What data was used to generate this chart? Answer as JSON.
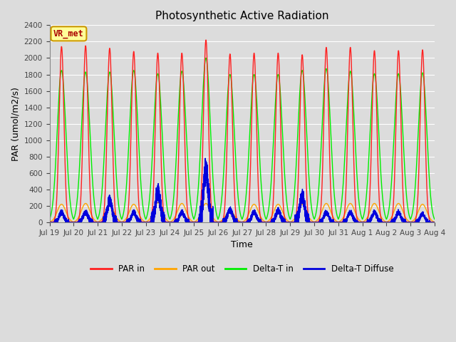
{
  "title": "Photosynthetic Active Radiation",
  "xlabel": "Time",
  "ylabel": "PAR (umol/m2/s)",
  "ylim": [
    0,
    2400
  ],
  "yticks": [
    0,
    200,
    400,
    600,
    800,
    1000,
    1200,
    1400,
    1600,
    1800,
    2000,
    2200,
    2400
  ],
  "background_color": "#dcdcdc",
  "plot_bg_color": "#dcdcdc",
  "grid_color": "#ffffff",
  "colors": {
    "PAR_in": "#ff2020",
    "PAR_out": "#ffa500",
    "Delta_T_in": "#00ee00",
    "Delta_T_Diffuse": "#0000dd"
  },
  "legend_labels": [
    "PAR in",
    "PAR out",
    "Delta-T in",
    "Delta-T Diffuse"
  ],
  "annotation_text": "VR_met",
  "num_days": 16,
  "points_per_day": 288,
  "title_fontsize": 11,
  "par_in_peaks": [
    2140,
    2150,
    2120,
    2080,
    2060,
    2060,
    2220,
    2050,
    2060,
    2060,
    2040,
    2130,
    2130,
    2090,
    2090,
    2100
  ],
  "par_out_peaks": [
    220,
    230,
    210,
    220,
    240,
    230,
    230,
    140,
    220,
    220,
    220,
    230,
    230,
    230,
    230,
    220
  ],
  "delta_t_in_peaks": [
    1850,
    1830,
    1830,
    1850,
    1810,
    1840,
    2000,
    1800,
    1800,
    1800,
    1850,
    1870,
    1840,
    1810,
    1810,
    1820
  ],
  "delta_t_diff_peaks": [
    120,
    120,
    260,
    120,
    380,
    120,
    620,
    150,
    120,
    140,
    320,
    120,
    120,
    120,
    120,
    100
  ],
  "par_in_sigma": 0.1,
  "par_out_sigma": 0.18,
  "delta_t_in_sigma": 0.18,
  "delta_t_diff_sigma": 0.1,
  "tick_labels": [
    "Jul 19",
    "Jul 20",
    "Jul 21",
    "Jul 22",
    "Jul 23",
    "Jul 24",
    "Jul 25",
    "Jul 26",
    "Jul 27",
    "Jul 28",
    "Jul 29",
    "Jul 30",
    "Jul 31",
    "Aug 1",
    "Aug 2",
    "Aug 3"
  ]
}
